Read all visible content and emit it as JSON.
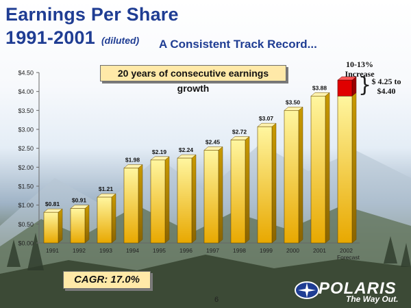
{
  "header": {
    "title_line1": "Earnings Per Share",
    "title_line2": "1991-2001",
    "title_qualifier": "(diluted)",
    "tagline": "A Consistent Track Record..."
  },
  "callouts": {
    "growth": "20 years of consecutive earnings growth",
    "cagr": "CAGR:  17.0%"
  },
  "notes": {
    "increase": "10-13% Increase",
    "range": "$ 4.25 to $4.40"
  },
  "page_number": "6",
  "logo": {
    "brand": "POLARIS",
    "tagline": "The Way Out."
  },
  "colors": {
    "bar_top": "#fff6a0",
    "bar_bottom": "#e8a800",
    "forecast_increase": "#e00000",
    "title_blue": "#1f3d93"
  },
  "chart_data": {
    "type": "bar",
    "categories": [
      "1991",
      "1992",
      "1993",
      "1994",
      "1995",
      "1996",
      "1997",
      "1998",
      "1999",
      "2000",
      "2001",
      "2002"
    ],
    "category_sublabels": {
      "2002": "Forecast"
    },
    "values": [
      0.81,
      0.91,
      1.21,
      1.98,
      2.19,
      2.24,
      2.45,
      2.72,
      3.07,
      3.5,
      3.88,
      3.88
    ],
    "data_labels": [
      "$0.81",
      "$0.91",
      "$1.21",
      "$1.98",
      "$2.19",
      "$2.24",
      "$2.45",
      "$2.72",
      "$3.07",
      "$3.50",
      "$3.88",
      ""
    ],
    "forecast_increase": {
      "category": "2002",
      "from": 3.88,
      "to": 4.3
    },
    "ylim": [
      0,
      4.5
    ],
    "yticks": [
      "$0.00",
      "$0.50",
      "$1.00",
      "$1.50",
      "$2.00",
      "$2.50",
      "$3.00",
      "$3.50",
      "$4.00",
      "$4.50"
    ],
    "ytick_values": [
      0,
      0.5,
      1,
      1.5,
      2,
      2.5,
      3,
      3.5,
      4,
      4.5
    ],
    "grid": false,
    "legend": "none"
  }
}
